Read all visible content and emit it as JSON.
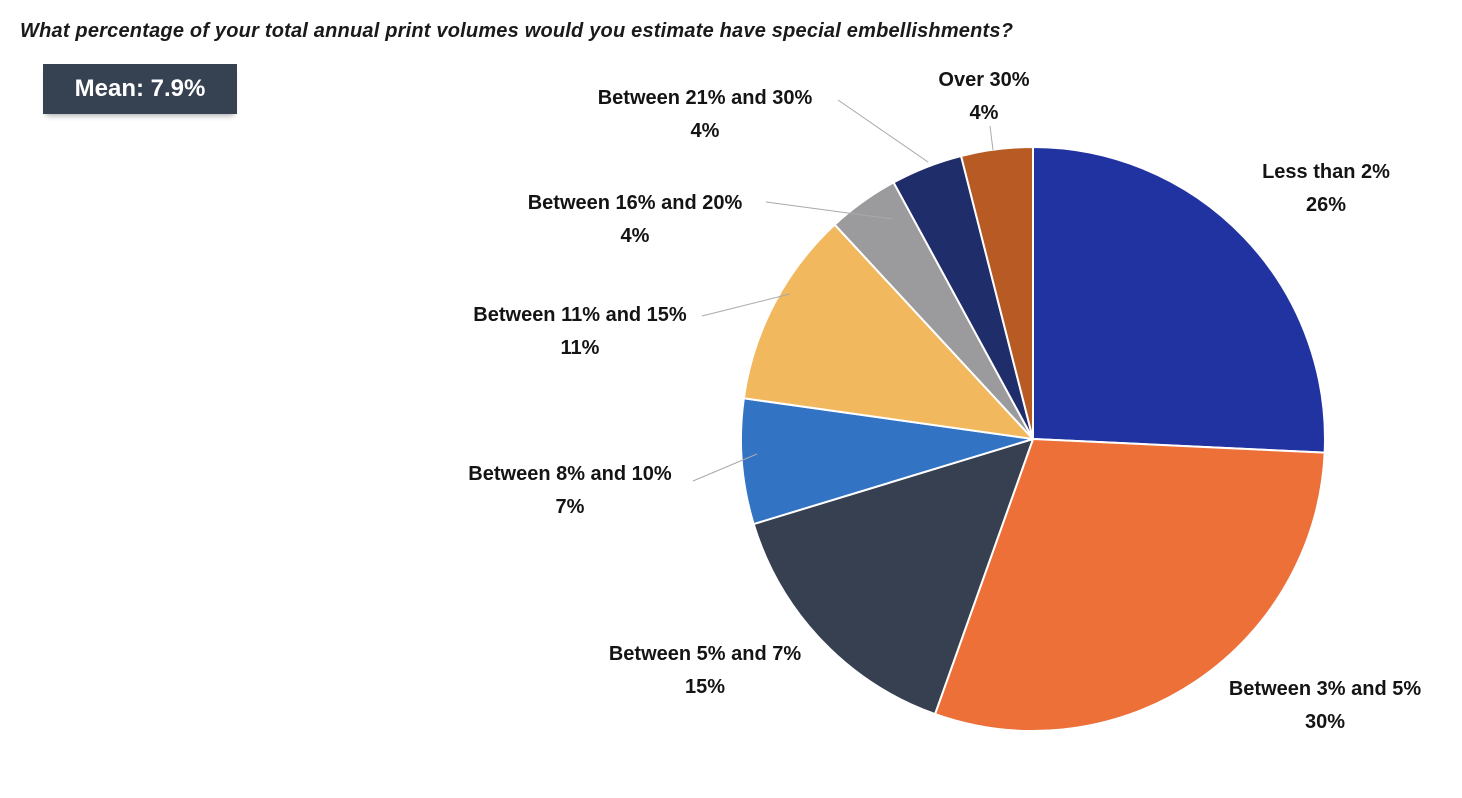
{
  "chart_data": {
    "type": "pie",
    "title": "What percentage of your total annual print volumes would you estimate have special embellishments?",
    "mean_badge": {
      "text": "Mean: 7.9%",
      "bg_color": "#364152",
      "text_color": "#ffffff"
    },
    "start_angle_deg": -90,
    "direction": "clockwise",
    "legend": "none",
    "labeling": "direct labels with leader lines",
    "slice_border_color": "#ffffff",
    "leader_line_color": "#a9a9a9",
    "slices": [
      {
        "label": "Less than 2%",
        "value": 26,
        "value_label": "26%",
        "color": "#2133A0"
      },
      {
        "label": "Between 3% and 5%",
        "value": 30,
        "value_label": "30%",
        "color": "#EC7038"
      },
      {
        "label": "Between 5% and 7%",
        "value": 15,
        "value_label": "15%",
        "color": "#374050"
      },
      {
        "label": "Between 8% and 10%",
        "value": 7,
        "value_label": "7%",
        "color": "#3273C4"
      },
      {
        "label": "Between 11% and 15%",
        "value": 11,
        "value_label": "11%",
        "color": "#F2B85E"
      },
      {
        "label": "Between 16% and 20%",
        "value": 4,
        "value_label": "4%",
        "color": "#9B9B9D"
      },
      {
        "label": "Between 21% and 30%",
        "value": 4,
        "value_label": "4%",
        "color": "#1F2D6B"
      },
      {
        "label": "Over 30%",
        "value": 4,
        "value_label": "4%",
        "color": "#B85A24"
      }
    ]
  }
}
